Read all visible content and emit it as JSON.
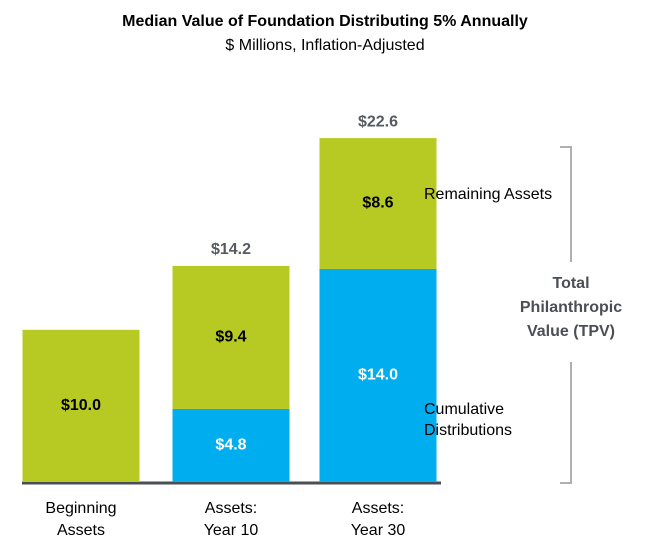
{
  "chart_data": {
    "type": "stacked_bar",
    "title": "Median Value of Foundation Distributing 5% Annually",
    "subtitle": "$ Millions, Inflation-Adjusted",
    "categories": [
      [
        "Beginning",
        "Assets"
      ],
      [
        "Assets:",
        "Year 10"
      ],
      [
        "Assets:",
        "Year 30"
      ]
    ],
    "series": [
      {
        "name": "Cumulative Distributions",
        "color": "#00aeef",
        "label_color": "#ffffff",
        "values": [
          null,
          4.8,
          14.0
        ],
        "value_labels": [
          null,
          "$4.8",
          "$14.0"
        ]
      },
      {
        "name": "Remaining Assets",
        "color": "#b7c923",
        "label_color": "#000000",
        "values": [
          10.0,
          9.4,
          8.6
        ],
        "value_labels": [
          "$10.0",
          "$9.4",
          "$8.6"
        ]
      }
    ],
    "totals": [
      null,
      14.2,
      22.6
    ],
    "total_labels": [
      null,
      "$14.2",
      "$22.6"
    ],
    "annotation": "Total Philanthropic Value (TPV)",
    "ylim": [
      0,
      23
    ]
  }
}
